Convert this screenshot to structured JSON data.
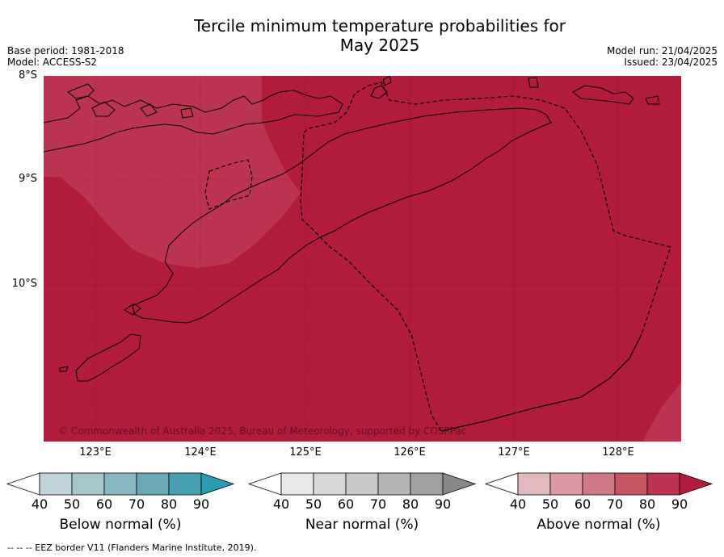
{
  "header": {
    "title_line1": "Tercile minimum temperature probabilities for",
    "title_line2": "May 2025",
    "base_period": "Base period: 1981-2018",
    "model": "Model: ACCESS-S2",
    "model_run": "Model run: 21/04/2025",
    "issued": "Issued: 23/04/2025"
  },
  "map": {
    "lat_labels": [
      "8°S",
      "9°S",
      "10°S"
    ],
    "lon_labels": [
      "123°E",
      "124°E",
      "125°E",
      "126°E",
      "127°E",
      "128°E"
    ],
    "copyright": "© Commonwealth of Australia 2025, Bureau of Meteorology, supported by COSPPac",
    "colors": {
      "above_90": "#b01c3a",
      "above_80": "#bc3550",
      "land_outline": "#000000"
    }
  },
  "colorbars": [
    {
      "label": "Below normal (%)",
      "ticks": [
        "40",
        "50",
        "60",
        "70",
        "80",
        "90"
      ],
      "colors": [
        "#ffffff",
        "#bfd3da",
        "#a7c6cc",
        "#88b7c1",
        "#6aa8b6",
        "#46a0b1",
        "#2a9bb0"
      ]
    },
    {
      "label": "Near normal (%)",
      "ticks": [
        "40",
        "50",
        "60",
        "70",
        "80",
        "90"
      ],
      "colors": [
        "#ffffff",
        "#e8e8e8",
        "#d8d8d8",
        "#c8c8c8",
        "#b4b4b4",
        "#a0a0a0",
        "#888888"
      ]
    },
    {
      "label": "Above normal (%)",
      "ticks": [
        "40",
        "50",
        "60",
        "70",
        "80",
        "90"
      ],
      "colors": [
        "#ffffff",
        "#e3b9c0",
        "#da99a3",
        "#cf7a84",
        "#c65564",
        "#bc3550",
        "#b01c3a"
      ]
    }
  ],
  "footer": "--  --  -- EEZ border V11 (Flanders Marine Institute, 2019)."
}
